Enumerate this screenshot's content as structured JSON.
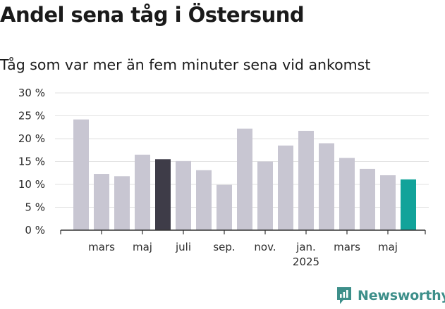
{
  "header": {
    "title": "Andel sena tåg i Östersund",
    "subtitle": "Tåg som var mer än fem minuter sena vid ankomst"
  },
  "brand": {
    "name": "Newsworthy",
    "color": "#3d8f8a"
  },
  "colors": {
    "default_bar": "#c8c6d2",
    "highlight_bar": "#3e3c48",
    "latest_bar": "#12a39a",
    "grid": "#e2e2e2",
    "axis": "#333333"
  },
  "chart_data": {
    "type": "bar",
    "title": "Andel sena tåg i Östersund",
    "subtitle": "Tåg som var mer än fem minuter sena vid ankomst",
    "xlabel": "",
    "ylabel": "",
    "ylim": [
      0,
      30
    ],
    "yticks": [
      "0 %",
      "5 %",
      "10 %",
      "15 %",
      "20 %",
      "25 %",
      "30 %"
    ],
    "grid": true,
    "categories": [
      "2024-02",
      "2024-03",
      "2024-04",
      "2024-05",
      "2024-06",
      "2024-07",
      "2024-08",
      "2024-09",
      "2024-10",
      "2024-11",
      "2024-12",
      "2025-01",
      "2025-02",
      "2025-03",
      "2025-04",
      "2025-05",
      "2025-06"
    ],
    "values": [
      24.2,
      12.3,
      11.8,
      16.5,
      15.5,
      15.1,
      13.1,
      9.9,
      22.2,
      15.0,
      18.5,
      21.7,
      19.0,
      15.8,
      13.4,
      12.0,
      11.1
    ],
    "highlight_index": 4,
    "latest_index": 16,
    "xtick_labels": [
      {
        "index": 1,
        "label": "mars"
      },
      {
        "index": 3,
        "label": "maj"
      },
      {
        "index": 5,
        "label": "juli"
      },
      {
        "index": 7,
        "label": "sep."
      },
      {
        "index": 9,
        "label": "nov."
      },
      {
        "index": 11,
        "label": "jan.",
        "sublabel": "2025"
      },
      {
        "index": 13,
        "label": "mars"
      },
      {
        "index": 15,
        "label": "maj"
      }
    ]
  }
}
